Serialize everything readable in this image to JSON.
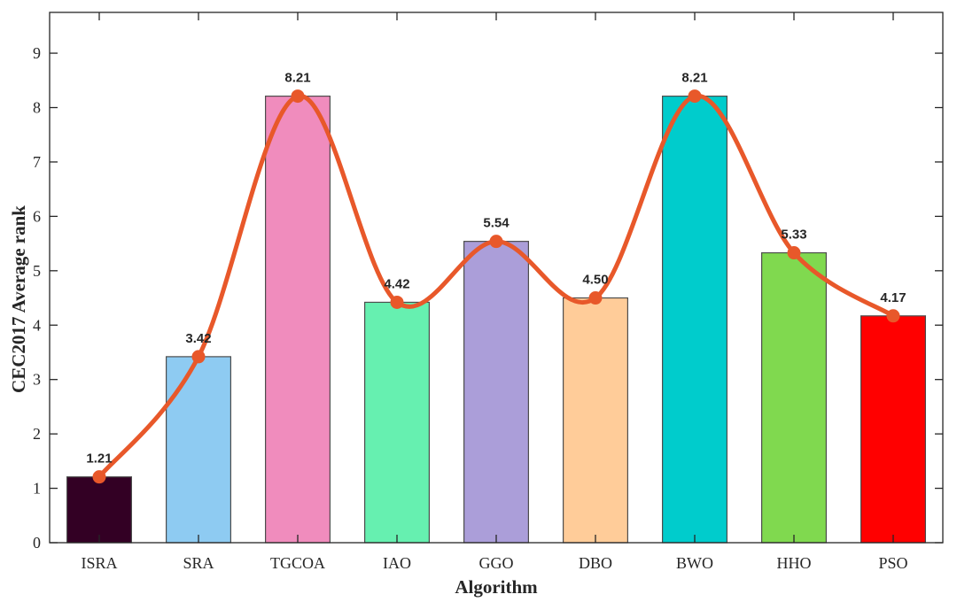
{
  "chart_data": {
    "type": "bar",
    "title": "",
    "xlabel": "Algorithm",
    "ylabel": "CEC2017 Average rank",
    "categories": [
      "ISRA",
      "SRA",
      "TGCOA",
      "IAO",
      "GGO",
      "DBO",
      "BWO",
      "HHO",
      "PSO"
    ],
    "values": [
      1.21,
      3.42,
      8.21,
      4.42,
      5.54,
      4.5,
      8.21,
      5.33,
      4.17
    ],
    "value_labels": [
      "1.21",
      "3.42",
      "8.21",
      "4.42",
      "5.54",
      "4.50",
      "8.21",
      "5.33",
      "4.17"
    ],
    "bar_colors": [
      "#330024",
      "#8ecbf2",
      "#f08cbd",
      "#66f0b0",
      "#ab9ed9",
      "#ffcc99",
      "#00cccc",
      "#80d94f",
      "#ff0000"
    ],
    "overlay_line": {
      "type": "line",
      "smooth": true,
      "color": "#e8582a",
      "values": [
        1.21,
        3.42,
        8.21,
        4.42,
        5.54,
        4.5,
        8.21,
        5.33,
        4.17
      ]
    },
    "ylim": [
      0,
      9.75
    ],
    "yticks": [
      0,
      1,
      2,
      3,
      4,
      5,
      6,
      7,
      8,
      9
    ],
    "grid": false
  }
}
